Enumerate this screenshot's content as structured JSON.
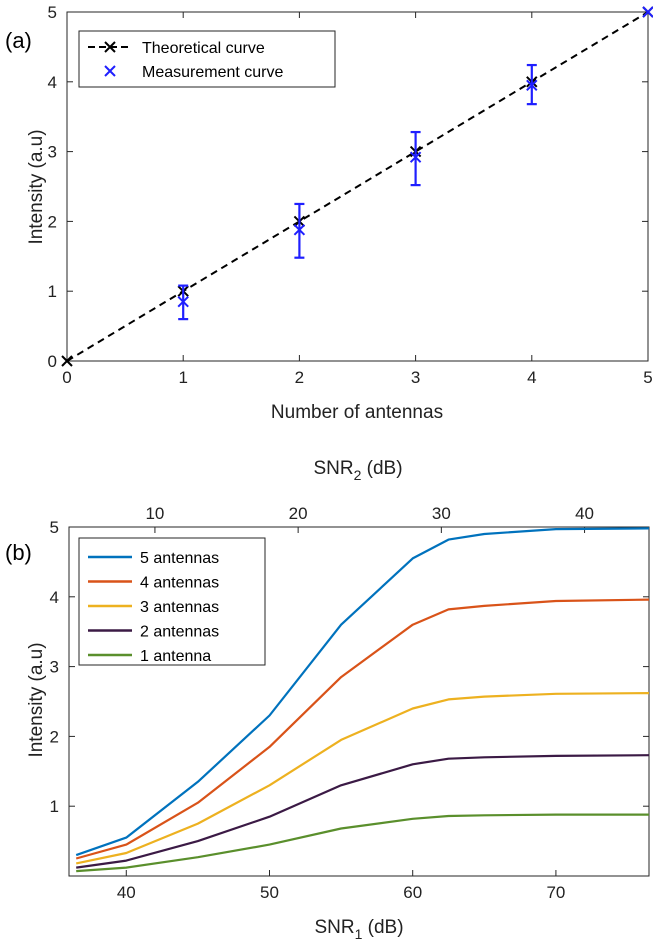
{
  "chart_data": [
    {
      "panel_label": "(a)",
      "type": "line",
      "xlabel": "Number of antennas",
      "ylabel": "Intensity (a.u)",
      "xlim": [
        0,
        5
      ],
      "ylim": [
        0,
        5
      ],
      "xticks": [
        "0",
        "1",
        "2",
        "3",
        "4",
        "5"
      ],
      "yticks": [
        "0",
        "1",
        "2",
        "3",
        "4",
        "5"
      ],
      "legend_position": "top-left",
      "series": [
        {
          "name": "Theoretical curve",
          "style": "dashed-line-with-x-markers",
          "color": "#000000",
          "x": [
            0,
            1,
            2,
            3,
            4,
            5
          ],
          "y": [
            0,
            1,
            2,
            3,
            4,
            5
          ]
        },
        {
          "name": "Measurement curve",
          "style": "x-markers-with-error-bars",
          "color": "#1f1fff",
          "x": [
            1,
            2,
            3,
            4,
            5
          ],
          "y": [
            0.85,
            1.88,
            2.92,
            3.95,
            5.0
          ],
          "y_low": [
            0.6,
            1.48,
            2.52,
            3.68,
            5.0
          ],
          "y_high": [
            1.08,
            2.25,
            3.28,
            4.24,
            5.0
          ]
        }
      ]
    },
    {
      "panel_label": "(b)",
      "type": "line",
      "xlabel": "SNR",
      "xlabel_sub": "1",
      "xlabel_unit": " (dB)",
      "x2label": "SNR",
      "x2label_sub": "2",
      "x2label_unit": " (dB)",
      "ylabel": "Intensity (a.u)",
      "xlim": [
        36,
        76.5
      ],
      "ylim": [
        0,
        5
      ],
      "xticks": [
        "40",
        "50",
        "60",
        "70"
      ],
      "x2ticks": [
        "10",
        "20",
        "30",
        "40"
      ],
      "x2_offset_db": 32,
      "yticks": [
        "1",
        "2",
        "3",
        "4",
        "5"
      ],
      "legend_position": "top-left",
      "x": [
        36.5,
        40,
        45,
        50,
        55,
        60,
        62.5,
        65,
        70,
        76.5
      ],
      "series": [
        {
          "name": "5 antennas",
          "color": "#0072bd",
          "values": [
            0.3,
            0.55,
            1.35,
            2.3,
            3.6,
            4.55,
            4.82,
            4.9,
            4.97,
            4.98
          ]
        },
        {
          "name": "4 antennas",
          "color": "#d95319",
          "values": [
            0.25,
            0.45,
            1.05,
            1.85,
            2.85,
            3.6,
            3.82,
            3.87,
            3.94,
            3.96
          ]
        },
        {
          "name": "3 antennas",
          "color": "#edb120",
          "values": [
            0.18,
            0.33,
            0.75,
            1.3,
            1.95,
            2.4,
            2.53,
            2.57,
            2.61,
            2.62
          ]
        },
        {
          "name": "2 antennas",
          "color": "#3b1a45",
          "values": [
            0.12,
            0.22,
            0.5,
            0.85,
            1.3,
            1.6,
            1.68,
            1.7,
            1.72,
            1.73
          ]
        },
        {
          "name": "1 antenna",
          "color": "#5a8f2c",
          "values": [
            0.07,
            0.12,
            0.27,
            0.45,
            0.68,
            0.82,
            0.86,
            0.87,
            0.88,
            0.88
          ]
        }
      ]
    }
  ]
}
